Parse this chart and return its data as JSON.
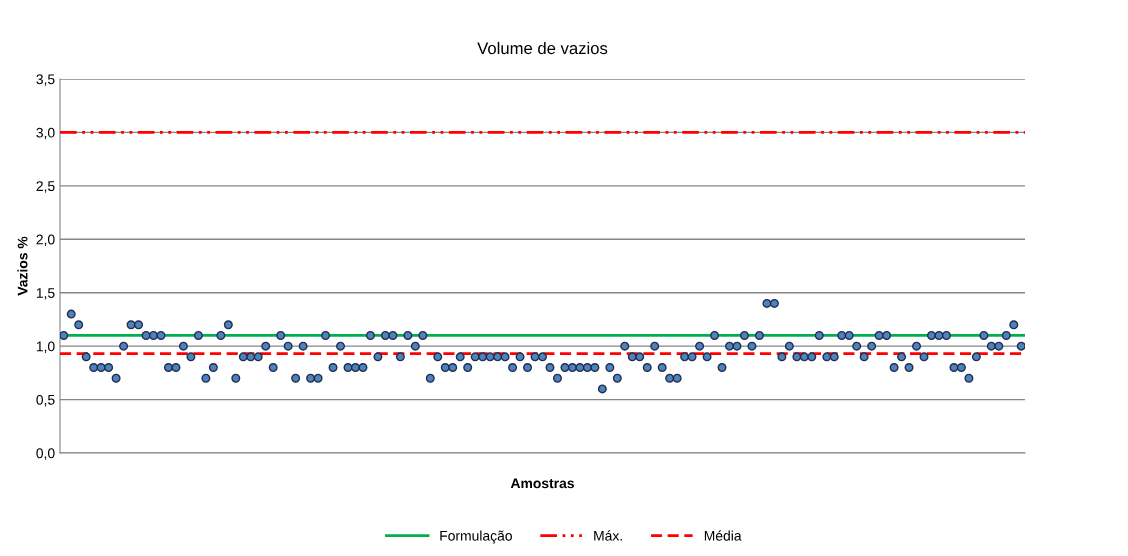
{
  "chart_data": {
    "type": "scatter",
    "title": "Volume de vazios",
    "xlabel": "Amostras",
    "ylabel": "Vazios %",
    "categories": [
      null,
      null,
      null,
      null,
      null,
      null,
      null,
      null,
      null,
      null,
      null,
      null,
      null,
      null,
      null,
      null,
      null,
      null,
      null,
      null,
      null,
      null,
      null,
      null,
      null,
      null,
      null,
      null,
      null,
      null,
      null,
      null,
      null,
      null,
      null,
      null,
      null,
      null,
      null,
      null,
      null,
      null,
      null,
      null,
      null,
      null,
      null,
      null,
      null,
      null,
      null,
      null,
      null,
      null,
      null,
      null,
      null,
      null,
      null,
      null,
      null,
      null,
      null,
      null,
      null,
      null,
      null,
      null,
      null,
      null,
      null,
      null,
      null,
      null,
      null,
      null,
      null,
      null,
      null,
      null,
      null,
      null,
      null,
      null,
      null,
      null,
      null,
      null,
      null,
      null,
      null,
      null,
      null,
      null,
      null,
      null,
      null,
      null,
      null,
      null,
      null,
      null,
      null,
      null,
      null,
      null,
      null,
      null,
      null,
      null,
      null,
      null,
      null,
      null,
      null,
      null,
      null,
      null,
      null,
      null,
      null,
      null,
      null,
      null,
      null,
      null,
      null,
      null,
      null
    ],
    "series": [
      {
        "color": "#4f81bd",
        "values": [
          1.1,
          1.3,
          1.2,
          0.9,
          0.8,
          0.8,
          0.8,
          0.7,
          1.0,
          1.2,
          1.2,
          1.1,
          1.1,
          1.1,
          0.8,
          0.8,
          1.0,
          0.9,
          1.1,
          0.7,
          0.8,
          1.1,
          1.2,
          0.7,
          0.9,
          0.9,
          0.9,
          1.0,
          0.8,
          1.1,
          1.0,
          0.7,
          1.0,
          0.7,
          0.7,
          1.1,
          0.8,
          1.0,
          0.8,
          0.8,
          0.8,
          1.1,
          0.9,
          1.1,
          1.1,
          0.9,
          1.1,
          1.0,
          1.1,
          0.7,
          0.9,
          0.8,
          0.8,
          0.9,
          0.8,
          0.9,
          0.9,
          0.9,
          0.9,
          0.9,
          0.8,
          0.9,
          0.8,
          0.9,
          0.9,
          0.8,
          0.7,
          0.8,
          0.8,
          0.8,
          0.8,
          0.8,
          0.6,
          0.8,
          0.7,
          1.0,
          0.9,
          0.9,
          0.8,
          1.0,
          0.8,
          0.7,
          0.7,
          0.9,
          0.9,
          1.0,
          0.9,
          1.1,
          0.8,
          1.0,
          1.0,
          1.1,
          1.0,
          1.1,
          1.4,
          1.4,
          0.9,
          1.0,
          0.9,
          0.9,
          0.9,
          1.1,
          0.9,
          0.9,
          1.1,
          1.1,
          1.0,
          0.9,
          1.0,
          1.1,
          1.1,
          0.8,
          0.9,
          0.8,
          1.0,
          0.9,
          1.1,
          1.1,
          1.1,
          0.8,
          0.8,
          0.7,
          0.9,
          1.1,
          1.0,
          1.0,
          1.1,
          1.2,
          1.0
        ]
      }
    ],
    "ref_lines": [
      {
        "axis": "y",
        "value": 1.1,
        "label": "Formulação",
        "color": "#00b050",
        "line_style": "solid"
      },
      {
        "axis": "y",
        "value": 3.0,
        "label": "Máx.",
        "color": "#ff0000",
        "line_style": "dashdot"
      },
      {
        "axis": "y",
        "value": 0.93,
        "label": "Média",
        "color": "#ff0000",
        "line_style": "dashed"
      }
    ],
    "ylim": [
      0,
      3.5
    ],
    "yticks": [
      {
        "value": 0,
        "label": "0,0"
      },
      {
        "value": 0.5,
        "label": "0,5"
      },
      {
        "value": 1.0,
        "label": "1,0"
      },
      {
        "value": 1.5,
        "label": "1,5"
      },
      {
        "value": 2.0,
        "label": "2,0"
      },
      {
        "value": 2.5,
        "label": "2,5"
      },
      {
        "value": 3.0,
        "label": "3,0"
      },
      {
        "value": 3.5,
        "label": "3,5"
      }
    ],
    "grid": "y",
    "legend": "bottom",
    "marker": "circle",
    "tick_labels": "y"
  }
}
